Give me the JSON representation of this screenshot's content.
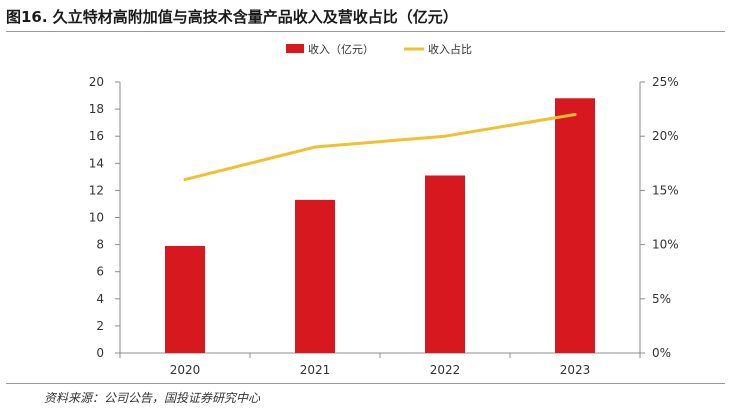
{
  "title": "图16. 久立特材高附加值与高技术含量产品收入及营收占比（亿元）",
  "source": "资料来源：公司公告，国投证券研究中心",
  "colors": {
    "bar": "#d7181f",
    "line": "#f0c030",
    "axis": "#8c8c8c",
    "text": "#333333"
  },
  "chart_data": {
    "type": "bar",
    "categories": [
      "2020",
      "2021",
      "2022",
      "2023"
    ],
    "series": [
      {
        "name": "收入（亿元）",
        "type": "bar",
        "axis": "left",
        "values": [
          7.9,
          11.3,
          13.1,
          18.8
        ]
      },
      {
        "name": "收入占比",
        "type": "line",
        "axis": "right",
        "values": [
          0.16,
          0.19,
          0.2,
          0.22
        ]
      }
    ],
    "y_left": {
      "min": 0,
      "max": 20,
      "ticks": [
        "0",
        "2",
        "4",
        "6",
        "8",
        "10",
        "12",
        "14",
        "16",
        "18",
        "20"
      ]
    },
    "y_right": {
      "min": 0,
      "max": 0.25,
      "ticks": [
        "0%",
        "5%",
        "10%",
        "15%",
        "20%",
        "25%"
      ]
    },
    "legend_position": "top-center",
    "grid": false
  }
}
